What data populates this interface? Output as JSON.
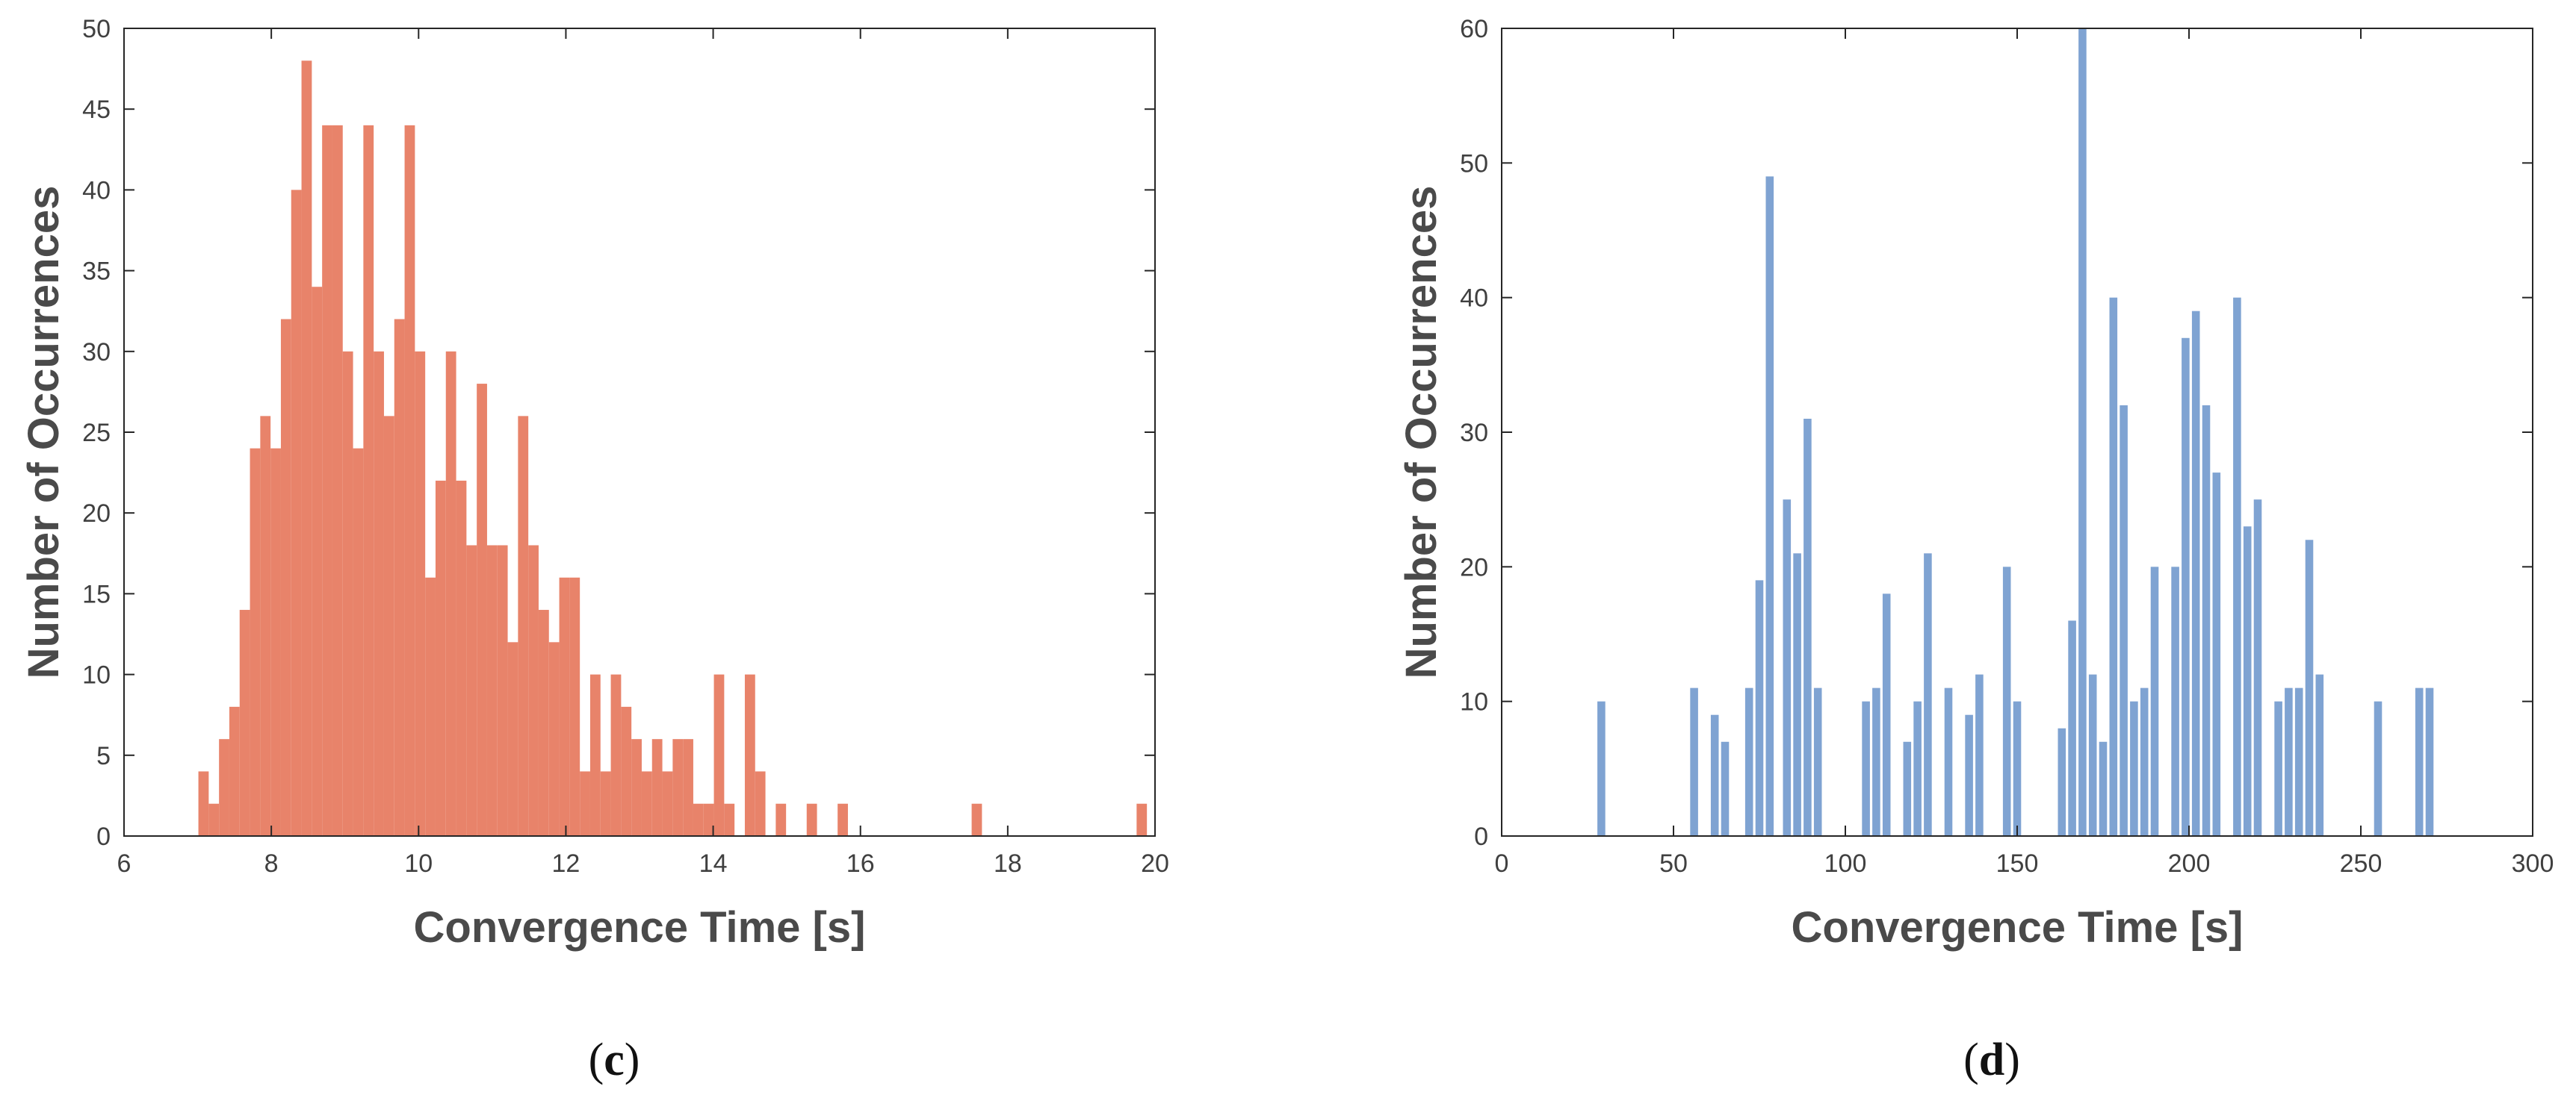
{
  "chart_data": [
    {
      "type": "bar",
      "panel_label": "c",
      "xlabel": "Convergence Time [s]",
      "ylabel": "Number of Occurrences",
      "xlim": [
        6,
        20
      ],
      "ylim": [
        0,
        50
      ],
      "xticks": [
        6,
        8,
        10,
        12,
        14,
        16,
        18,
        20
      ],
      "yticks": [
        0,
        5,
        10,
        15,
        20,
        25,
        30,
        35,
        40,
        45,
        50
      ],
      "bar_width": 0.14,
      "color": "#E8836A",
      "x": [
        7.08,
        7.22,
        7.36,
        7.5,
        7.64,
        7.78,
        7.92,
        8.06,
        8.2,
        8.34,
        8.48,
        8.62,
        8.76,
        8.9,
        9.04,
        9.18,
        9.32,
        9.46,
        9.6,
        9.74,
        9.88,
        10.02,
        10.16,
        10.3,
        10.44,
        10.58,
        10.72,
        10.86,
        11,
        11.14,
        11.28,
        11.42,
        11.56,
        11.7,
        11.84,
        11.98,
        12.12,
        12.26,
        12.4,
        12.54,
        12.68,
        12.82,
        12.96,
        13.1,
        13.24,
        13.38,
        13.52,
        13.66,
        13.8,
        13.94,
        14.08,
        14.22,
        14.36,
        14.5,
        14.64,
        14.78,
        14.92,
        15.06,
        15.2,
        15.34,
        15.48,
        15.62,
        15.76,
        15.9,
        16.04,
        16.18,
        16.32,
        16.46,
        16.6,
        16.74,
        16.88,
        17.02,
        17.16,
        17.3,
        17.44,
        17.58,
        17.72,
        17.86,
        18,
        18.14,
        18.28,
        18.42,
        18.56,
        18.7,
        18.84,
        18.98,
        19.12,
        19.26,
        19.4,
        19.54,
        19.68,
        19.82
      ],
      "values": [
        4,
        2,
        6,
        8,
        14,
        24,
        26,
        24,
        32,
        40,
        48,
        34,
        44,
        44,
        30,
        24,
        44,
        30,
        26,
        32,
        44,
        30,
        16,
        22,
        30,
        22,
        18,
        28,
        18,
        18,
        12,
        26,
        18,
        14,
        12,
        16,
        16,
        4,
        10,
        4,
        10,
        8,
        6,
        4,
        6,
        4,
        6,
        6,
        2,
        2,
        10,
        2,
        0,
        10,
        4,
        0,
        2,
        0,
        0,
        2,
        0,
        0,
        2,
        0,
        0,
        0,
        0,
        0,
        0,
        0,
        0,
        0,
        0,
        0,
        0,
        2,
        0,
        0,
        0,
        0,
        0,
        0,
        0,
        0,
        0,
        0,
        0,
        0,
        0,
        0,
        0,
        2
      ]
    },
    {
      "type": "bar",
      "panel_label": "d",
      "xlabel": "Convergence Time [s]",
      "ylabel": "Number of Occurrences",
      "xlim": [
        0,
        300
      ],
      "ylim": [
        0,
        60
      ],
      "xticks": [
        0,
        50,
        100,
        150,
        200,
        250,
        300
      ],
      "yticks": [
        0,
        10,
        20,
        30,
        40,
        50,
        60
      ],
      "bar_width": 2.3,
      "color": "#7FA3D2",
      "x": [
        29,
        56,
        62,
        65,
        72,
        75,
        78,
        83,
        86,
        89,
        92,
        106,
        109,
        112,
        118,
        121,
        124,
        130,
        136,
        139,
        147,
        150,
        163,
        166,
        169,
        172,
        175,
        178,
        181,
        184,
        187,
        190,
        196,
        199,
        202,
        205,
        208,
        214,
        217,
        220,
        226,
        229,
        232,
        235,
        238,
        255,
        267,
        270
      ],
      "values": [
        10,
        11,
        9,
        7,
        11,
        19,
        49,
        25,
        21,
        31,
        11,
        10,
        11,
        18,
        7,
        10,
        21,
        11,
        9,
        12,
        20,
        10,
        8,
        16,
        60,
        12,
        7,
        40,
        32,
        10,
        11,
        20,
        20,
        37,
        39,
        32,
        27,
        40,
        23,
        25,
        10,
        11,
        11,
        22,
        12,
        10,
        11,
        11
      ]
    }
  ]
}
